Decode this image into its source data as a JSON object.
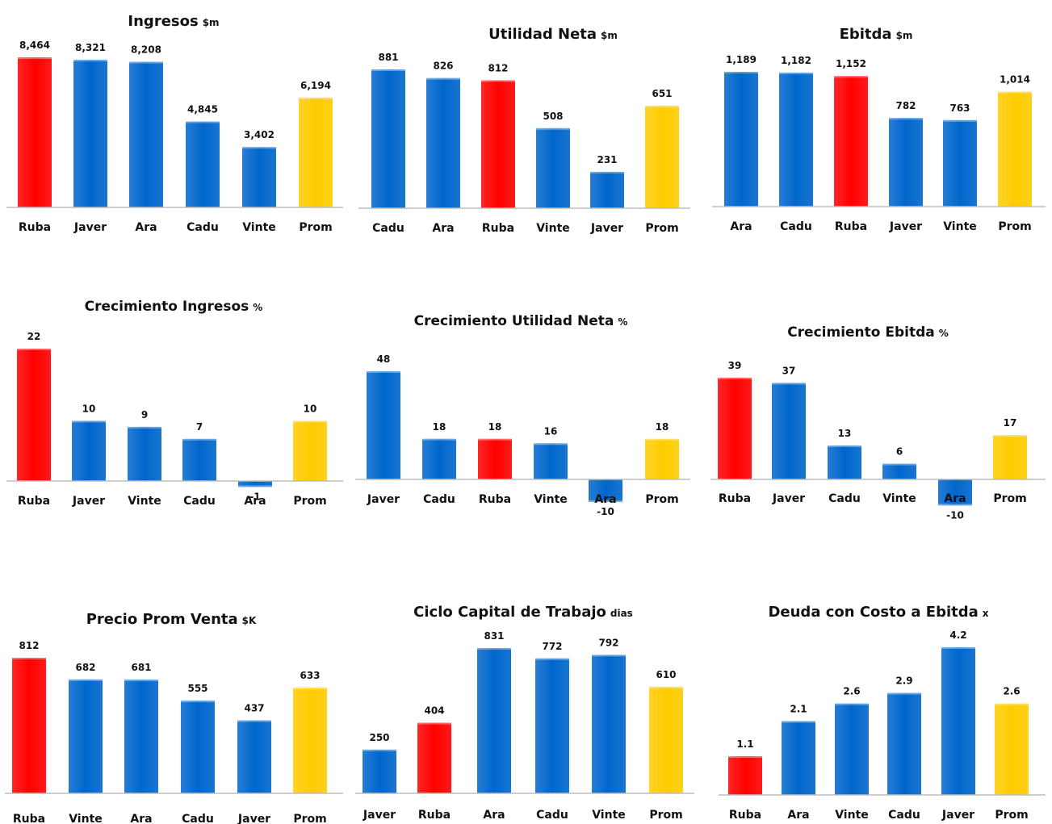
{
  "colors": {
    "red": "#FF0000",
    "blue": "#0066CC",
    "yellow": "#FFCC00"
  },
  "chart_data": [
    {
      "type": "bar",
      "title": "Ingresos",
      "unit": "$m",
      "categories": [
        "Ruba",
        "Javer",
        "Ara",
        "Cadu",
        "Vinte",
        "Prom"
      ],
      "values": [
        8464,
        8321,
        8208,
        4845,
        3402,
        6194
      ],
      "value_labels": [
        "8,464",
        "8,321",
        "8,208",
        "4,845",
        "3,402",
        "6,194"
      ],
      "bar_colors": [
        "red",
        "blue",
        "blue",
        "blue",
        "blue",
        "yellow"
      ],
      "ylim": [
        0,
        8464
      ]
    },
    {
      "type": "bar",
      "title": "Utilidad Neta",
      "unit": "$m",
      "categories": [
        "Cadu",
        "Ara",
        "Ruba",
        "Vinte",
        "Javer",
        "Prom"
      ],
      "values": [
        881,
        826,
        812,
        508,
        231,
        651
      ],
      "value_labels": [
        "881",
        "826",
        "812",
        "508",
        "231",
        "651"
      ],
      "bar_colors": [
        "blue",
        "blue",
        "red",
        "blue",
        "blue",
        "yellow"
      ],
      "ylim": [
        0,
        881
      ]
    },
    {
      "type": "bar",
      "title": "Ebitda",
      "unit": "$m",
      "categories": [
        "Ara",
        "Cadu",
        "Ruba",
        "Javer",
        "Vinte",
        "Prom"
      ],
      "values": [
        1189,
        1182,
        1152,
        782,
        763,
        1014
      ],
      "value_labels": [
        "1,189",
        "1,182",
        "1,152",
        "782",
        "763",
        "1,014"
      ],
      "bar_colors": [
        "blue",
        "blue",
        "red",
        "blue",
        "blue",
        "yellow"
      ],
      "ylim": [
        0,
        1189
      ]
    },
    {
      "type": "bar",
      "title": "Crecimiento Ingresos",
      "unit": "%",
      "categories": [
        "Ruba",
        "Javer",
        "Vinte",
        "Cadu",
        "Ara",
        "Prom"
      ],
      "values": [
        22,
        10,
        9,
        7,
        -1,
        10
      ],
      "value_labels": [
        "22",
        "10",
        "9",
        "7",
        "-1",
        "10"
      ],
      "bar_colors": [
        "red",
        "blue",
        "blue",
        "blue",
        "blue",
        "yellow"
      ],
      "ylim": [
        -1,
        22
      ]
    },
    {
      "type": "bar",
      "title": "Crecimiento Utilidad Neta",
      "unit": "%",
      "categories": [
        "Javer",
        "Cadu",
        "Ruba",
        "Vinte",
        "Ara",
        "Prom"
      ],
      "values": [
        48,
        18,
        18,
        16,
        -10,
        18
      ],
      "value_labels": [
        "48",
        "18",
        "18",
        "16",
        "-10",
        "18"
      ],
      "bar_colors": [
        "blue",
        "blue",
        "red",
        "blue",
        "blue",
        "yellow"
      ],
      "ylim": [
        -10,
        48
      ]
    },
    {
      "type": "bar",
      "title": "Crecimiento Ebitda",
      "unit": "%",
      "categories": [
        "Ruba",
        "Javer",
        "Cadu",
        "Vinte",
        "Ara",
        "Prom"
      ],
      "values": [
        39,
        37,
        13,
        6,
        -10,
        17
      ],
      "value_labels": [
        "39",
        "37",
        "13",
        "6",
        "-10",
        "17"
      ],
      "bar_colors": [
        "red",
        "blue",
        "blue",
        "blue",
        "blue",
        "yellow"
      ],
      "ylim": [
        -10,
        39
      ]
    },
    {
      "type": "bar",
      "title": "Precio Prom Venta",
      "unit": "$K",
      "categories": [
        "Ruba",
        "Vinte",
        "Ara",
        "Cadu",
        "Javer",
        "Prom"
      ],
      "values": [
        812,
        682,
        681,
        555,
        437,
        633
      ],
      "value_labels": [
        "812",
        "682",
        "681",
        "555",
        "437",
        "633"
      ],
      "bar_colors": [
        "red",
        "blue",
        "blue",
        "blue",
        "blue",
        "yellow"
      ],
      "ylim": [
        0,
        812
      ]
    },
    {
      "type": "bar",
      "title": "Ciclo Capital de Trabajo",
      "unit": "dias",
      "categories": [
        "Javer",
        "Ruba",
        "Ara",
        "Cadu",
        "Vinte",
        "Prom"
      ],
      "values": [
        250,
        404,
        831,
        772,
        792,
        610
      ],
      "value_labels": [
        "250",
        "404",
        "831",
        "772",
        "792",
        "610"
      ],
      "bar_colors": [
        "blue",
        "red",
        "blue",
        "blue",
        "blue",
        "yellow"
      ],
      "ylim": [
        0,
        831
      ]
    },
    {
      "type": "bar",
      "title": "Deuda con Costo a Ebitda",
      "unit": "x",
      "categories": [
        "Ruba",
        "Ara",
        "Vinte",
        "Cadu",
        "Javer",
        "Prom"
      ],
      "values": [
        1.1,
        2.1,
        2.6,
        2.9,
        4.2,
        2.6
      ],
      "value_labels": [
        "1.1",
        "2.1",
        "2.6",
        "2.9",
        "4.2",
        "2.6"
      ],
      "bar_colors": [
        "red",
        "blue",
        "blue",
        "blue",
        "blue",
        "yellow"
      ],
      "ylim": [
        0,
        4.2
      ]
    }
  ]
}
